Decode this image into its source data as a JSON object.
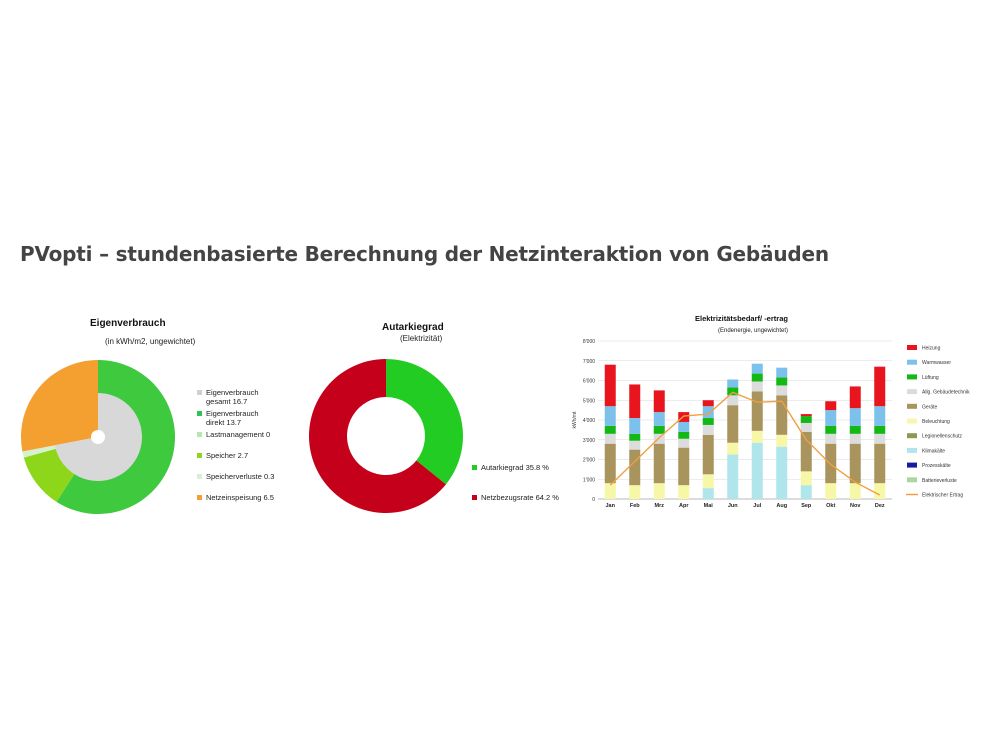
{
  "page": {
    "title": "PVopti – stundenbasierte Berechnung der Netzinteraktion von Gebäuden"
  },
  "chart_data": [
    {
      "type": "pie",
      "title": "Eigenverbrauch",
      "subtitle": "(in kWh/m2, ungewichtet)",
      "outer_ring": [
        {
          "label": "Eigenverbrauch direkt 13.7",
          "value": 13.7,
          "color": "#3fc93f"
        },
        {
          "label": "Lastmanagement 0",
          "value": 0,
          "color": "#a8e0a0"
        },
        {
          "label": "Speicher 2.7",
          "value": 2.7,
          "color": "#8ed61a"
        },
        {
          "label": "Speicherverluste 0.3",
          "value": 0.3,
          "color": "#d6f0d0"
        },
        {
          "label": "Netzeinspeisung 6.5",
          "value": 6.5,
          "color": "#f4a030"
        }
      ],
      "inner_pie": {
        "label": "Eigenverbrauch\ngesamt 16.7",
        "value": 16.7,
        "color": "#d8d8d8"
      },
      "legend": [
        {
          "label": "Eigenverbrauch\ngesamt 16.7",
          "color": "#d0d0d0"
        },
        {
          "label": "Eigenverbrauch\ndirekt 13.7",
          "color": "#2ec455"
        },
        {
          "label": "Lastmanagement 0",
          "color": "#b8e6b0"
        },
        {
          "label": "Speicher 2.7",
          "color": "#8ed61a"
        },
        {
          "label": "Speicherverluste 0.3",
          "color": "#d6f0d0"
        },
        {
          "label": "Netzeinspeisung 6.5",
          "color": "#f4a030"
        }
      ]
    },
    {
      "type": "pie",
      "title": "Autarkiegrad",
      "subtitle": "(Elektrizität)",
      "slices": [
        {
          "label": "Autarkiegrad 35.8 %",
          "value": 35.8,
          "color": "#22cc22"
        },
        {
          "label": "Netzbezugsrate 64.2 %",
          "value": 64.2,
          "color": "#c4001a"
        }
      ]
    },
    {
      "type": "bar",
      "stacked": true,
      "title": "Elektrizitätsbedarf/  -ertrag",
      "subtitle": "(Endenergie, ungewichtet)",
      "ylabel": "kWh/mt",
      "ylim": [
        0,
        8000
      ],
      "yticks": [
        "0",
        "1'000",
        "2'000",
        "3'000",
        "4'000",
        "5'000",
        "6'000",
        "7'000",
        "8'000"
      ],
      "grid": true,
      "legend_position": "right",
      "categories": [
        "Jan",
        "Feb",
        "Mrz",
        "Apr",
        "Mai",
        "Jun",
        "Jul",
        "Aug",
        "Sep",
        "Okt",
        "Nov",
        "Dez"
      ],
      "series": [
        {
          "name": "Klimakälte",
          "color": "#aee6ec",
          "values": [
            0,
            0,
            0,
            0,
            550,
            2250,
            2850,
            2650,
            700,
            0,
            0,
            0
          ]
        },
        {
          "name": "Beleuchtung",
          "color": "#f7f7a8",
          "values": [
            800,
            700,
            800,
            700,
            700,
            600,
            600,
            600,
            700,
            800,
            800,
            800
          ]
        },
        {
          "name": "Geräte",
          "color": "#a8945c",
          "values": [
            2000,
            1800,
            2000,
            1900,
            2000,
            1900,
            2000,
            2000,
            2000,
            2000,
            2000,
            2000
          ]
        },
        {
          "name": "Allg. Gebäudetechnik",
          "color": "#dcdcdc",
          "values": [
            500,
            450,
            500,
            450,
            500,
            500,
            500,
            500,
            450,
            500,
            500,
            500
          ]
        },
        {
          "name": "Lüftung",
          "color": "#14b814",
          "values": [
            400,
            350,
            400,
            350,
            350,
            400,
            400,
            400,
            350,
            400,
            400,
            400
          ]
        },
        {
          "name": "Warmwasser",
          "color": "#7cc0ec",
          "values": [
            1000,
            800,
            700,
            500,
            600,
            400,
            500,
            500,
            0,
            800,
            900,
            1000
          ]
        },
        {
          "name": "Heizung",
          "color": "#e8141e",
          "values": [
            2100,
            1700,
            1100,
            500,
            300,
            0,
            0,
            0,
            100,
            450,
            1100,
            2000
          ]
        }
      ],
      "line": {
        "name": "Elektrischer Ertrag",
        "color": "#f0a040",
        "values": [
          700,
          1900,
          3100,
          4200,
          4300,
          5400,
          4900,
          4950,
          3000,
          1750,
          850,
          200
        ]
      },
      "legend": [
        {
          "label": "Heizung",
          "color": "#e8141e"
        },
        {
          "label": "Warmwasser",
          "color": "#7cc0ec"
        },
        {
          "label": "Lüftung",
          "color": "#14b814"
        },
        {
          "label": "Allg. Gebäudetechnik",
          "color": "#dcdcdc"
        },
        {
          "label": "Geräte",
          "color": "#a8945c"
        },
        {
          "label": "Beleuchtung",
          "color": "#f7f7a8"
        },
        {
          "label": "Legionellenschutz",
          "color": "#8a9a52"
        },
        {
          "label": "Klimakälte",
          "color": "#aee6ec"
        },
        {
          "label": "Prozesskälte",
          "color": "#1a1aa0"
        },
        {
          "label": "Batterieverluste",
          "color": "#a8d8a0"
        },
        {
          "label": "Elektrischer Ertrag",
          "color": "#f0a040"
        }
      ]
    }
  ]
}
